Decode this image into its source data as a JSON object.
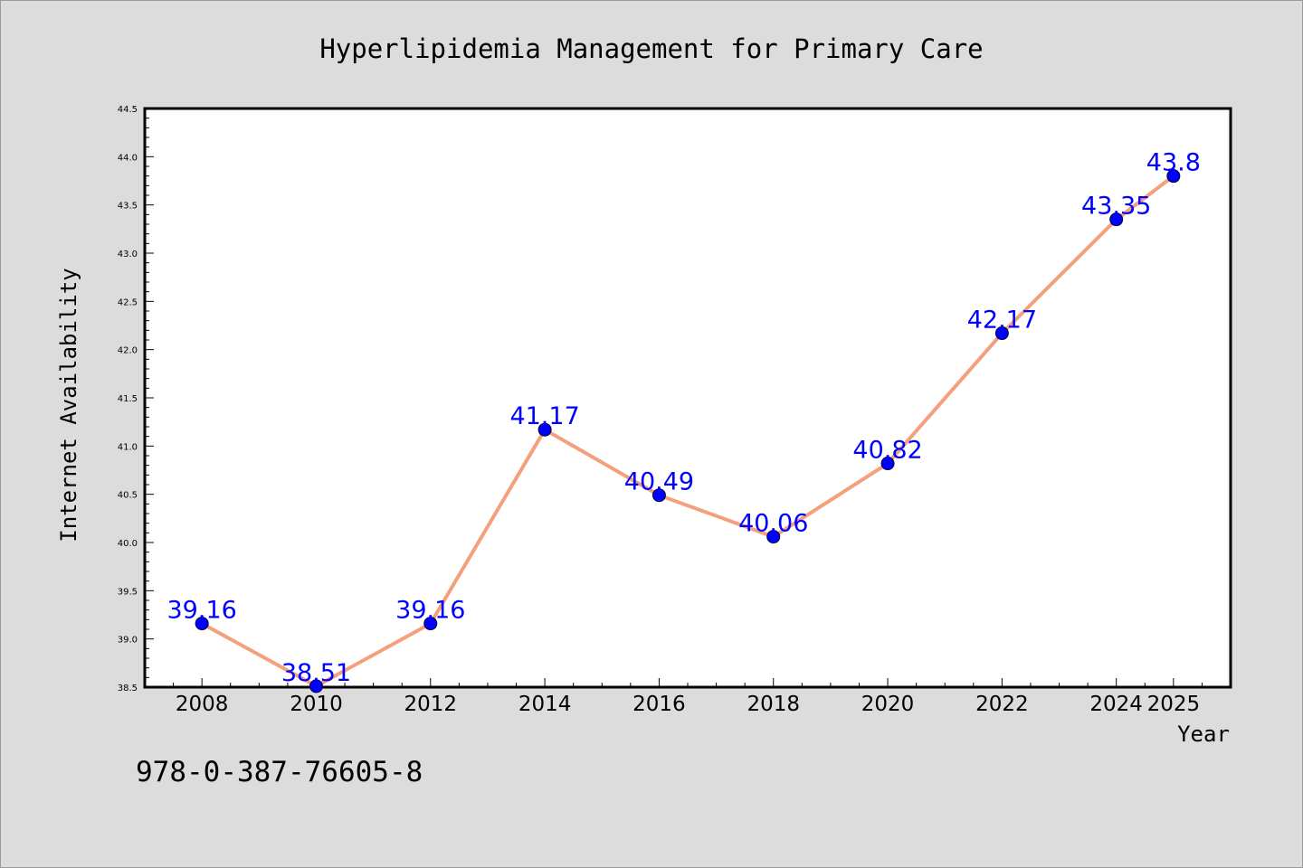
{
  "chart_data": {
    "type": "line",
    "title": "Hyperlipidemia Management for Primary Care",
    "xlabel": "Year",
    "ylabel": "Internet Availability",
    "categories": [
      "2008",
      "2010",
      "2012",
      "2014",
      "2016",
      "2018",
      "2020",
      "2022",
      "2024",
      "2025"
    ],
    "series": [
      {
        "values": [
          39.16,
          38.51,
          39.16,
          41.17,
          40.49,
          40.06,
          40.82,
          42.17,
          43.35,
          43.8
        ],
        "labels": [
          "39.16",
          "38.51",
          "39.16",
          "41.17",
          "40.49",
          "40.06",
          "40.82",
          "42.17",
          "43.35",
          "43.8"
        ]
      }
    ],
    "ylim": [
      38.5,
      44.5
    ],
    "yticks": [
      "38.5",
      "39.0",
      "39.5",
      "40.0",
      "40.5",
      "41.0",
      "41.5",
      "42.0",
      "42.5",
      "43.0",
      "43.5",
      "44.0",
      "44.5"
    ],
    "grid": false,
    "legend": "none",
    "colors": {
      "line": "#f4a07c",
      "marker": "#0000ff",
      "data_label": "#0000ff",
      "background": "#dcdcdc",
      "plot_area": "#ffffff"
    }
  },
  "footer": {
    "isbn": "978-0-387-76605-8"
  }
}
